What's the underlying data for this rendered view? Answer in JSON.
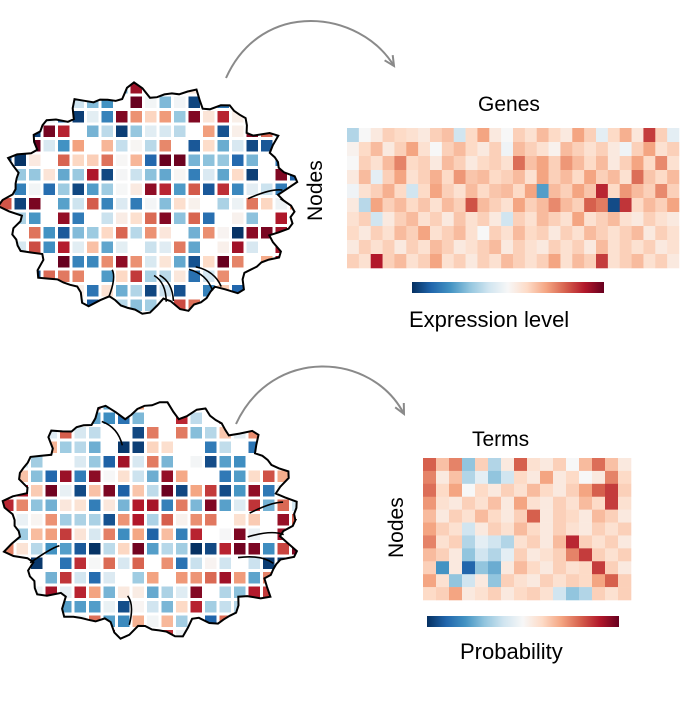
{
  "colors": {
    "scale": [
      "#053061",
      "#2166ac",
      "#4393c3",
      "#92c5de",
      "#d1e5f0",
      "#f7f7f7",
      "#fddbc7",
      "#f4a582",
      "#d6604d",
      "#b2182b",
      "#67001f"
    ],
    "outline": "#000000",
    "arrow": "#8a8a8a"
  },
  "panels": [
    {
      "id": "expression",
      "matrix_title": "Genes",
      "row_label": "Nodes",
      "colorbar_label": "Expression level",
      "matrix": [
        [
          0.35,
          0.5,
          0.55,
          0.62,
          0.6,
          0.58,
          0.55,
          0.62,
          0.65,
          0.4,
          0.6,
          0.7,
          0.55,
          0.5,
          0.62,
          0.58,
          0.66,
          0.6,
          0.55,
          0.7,
          0.62,
          0.45,
          0.6,
          0.68,
          0.56,
          0.85,
          0.62,
          0.45
        ],
        [
          0.52,
          0.6,
          0.66,
          0.55,
          0.62,
          0.7,
          0.58,
          0.5,
          0.62,
          0.66,
          0.6,
          0.55,
          0.62,
          0.48,
          0.66,
          0.62,
          0.58,
          0.52,
          0.66,
          0.62,
          0.58,
          0.62,
          0.55,
          0.48,
          0.62,
          0.7,
          0.58,
          0.62
        ],
        [
          0.5,
          0.62,
          0.58,
          0.66,
          0.75,
          0.6,
          0.62,
          0.55,
          0.66,
          0.62,
          0.55,
          0.6,
          0.62,
          0.58,
          0.78,
          0.65,
          0.7,
          0.62,
          0.72,
          0.66,
          0.6,
          0.66,
          0.55,
          0.62,
          0.7,
          0.6,
          0.74,
          0.58
        ],
        [
          0.55,
          0.66,
          0.45,
          0.62,
          0.7,
          0.58,
          0.62,
          0.68,
          0.6,
          0.72,
          0.64,
          0.66,
          0.6,
          0.62,
          0.66,
          0.58,
          0.7,
          0.62,
          0.66,
          0.6,
          0.7,
          0.62,
          0.66,
          0.58,
          0.78,
          0.64,
          0.6,
          0.66
        ],
        [
          0.48,
          0.58,
          0.62,
          0.68,
          0.6,
          0.4,
          0.6,
          0.7,
          0.62,
          0.58,
          0.66,
          0.6,
          0.64,
          0.66,
          0.6,
          0.7,
          0.22,
          0.66,
          0.62,
          0.7,
          0.64,
          0.88,
          0.6,
          0.72,
          0.66,
          0.62,
          0.74,
          0.62
        ],
        [
          0.55,
          0.36,
          0.7,
          0.62,
          0.66,
          0.6,
          0.64,
          0.58,
          0.66,
          0.62,
          0.82,
          0.66,
          0.62,
          0.58,
          0.7,
          0.62,
          0.66,
          0.74,
          0.66,
          0.62,
          0.8,
          0.76,
          0.05,
          0.86,
          0.6,
          0.66,
          0.62,
          0.7
        ],
        [
          0.58,
          0.62,
          0.4,
          0.55,
          0.62,
          0.66,
          0.58,
          0.62,
          0.55,
          0.64,
          0.58,
          0.62,
          0.55,
          0.4,
          0.62,
          0.58,
          0.66,
          0.62,
          0.58,
          0.7,
          0.58,
          0.62,
          0.66,
          0.58,
          0.55,
          0.62,
          0.58,
          0.55
        ],
        [
          0.6,
          0.55,
          0.62,
          0.58,
          0.66,
          0.62,
          0.7,
          0.58,
          0.62,
          0.66,
          0.58,
          0.5,
          0.62,
          0.58,
          0.66,
          0.6,
          0.62,
          0.55,
          0.62,
          0.58,
          0.66,
          0.62,
          0.58,
          0.62,
          0.66,
          0.55,
          0.62,
          0.58
        ],
        [
          0.55,
          0.62,
          0.58,
          0.62,
          0.55,
          0.62,
          0.58,
          0.66,
          0.62,
          0.55,
          0.58,
          0.62,
          0.66,
          0.55,
          0.62,
          0.58,
          0.55,
          0.62,
          0.58,
          0.62,
          0.55,
          0.66,
          0.58,
          0.62,
          0.58,
          0.62,
          0.55,
          0.58
        ],
        [
          0.62,
          0.58,
          0.9,
          0.62,
          0.66,
          0.58,
          0.62,
          0.7,
          0.58,
          0.62,
          0.55,
          0.62,
          0.58,
          0.66,
          0.62,
          0.58,
          0.62,
          0.7,
          0.58,
          0.66,
          0.62,
          0.85,
          0.58,
          0.62,
          0.66,
          0.58,
          0.62,
          0.55
        ]
      ]
    },
    {
      "id": "probability",
      "matrix_title": "Terms",
      "row_label": "Nodes",
      "colorbar_label": "Probability",
      "matrix": [
        [
          0.8,
          0.65,
          0.75,
          0.3,
          0.62,
          0.35,
          0.55,
          0.8,
          0.58,
          0.55,
          0.62,
          0.5,
          0.66,
          0.78,
          0.65,
          0.55
        ],
        [
          0.75,
          0.55,
          0.65,
          0.35,
          0.45,
          0.3,
          0.4,
          0.6,
          0.55,
          0.7,
          0.55,
          0.6,
          0.5,
          0.55,
          0.75,
          0.6
        ],
        [
          0.78,
          0.6,
          0.7,
          0.5,
          0.6,
          0.55,
          0.62,
          0.58,
          0.66,
          0.6,
          0.55,
          0.62,
          0.7,
          0.8,
          0.85,
          0.62
        ],
        [
          0.72,
          0.58,
          0.55,
          0.62,
          0.58,
          0.65,
          0.55,
          0.7,
          0.58,
          0.55,
          0.62,
          0.58,
          0.66,
          0.6,
          0.85,
          0.58
        ],
        [
          0.66,
          0.55,
          0.62,
          0.58,
          0.66,
          0.6,
          0.55,
          0.62,
          0.8,
          0.55,
          0.62,
          0.6,
          0.55,
          0.66,
          0.62,
          0.55
        ],
        [
          0.7,
          0.62,
          0.58,
          0.4,
          0.55,
          0.62,
          0.58,
          0.66,
          0.6,
          0.55,
          0.62,
          0.58,
          0.55,
          0.62,
          0.58,
          0.62
        ],
        [
          0.75,
          0.58,
          0.62,
          0.35,
          0.45,
          0.4,
          0.35,
          0.58,
          0.62,
          0.55,
          0.66,
          0.88,
          0.62,
          0.58,
          0.62,
          0.55
        ],
        [
          0.66,
          0.62,
          0.55,
          0.3,
          0.4,
          0.35,
          0.45,
          0.62,
          0.55,
          0.58,
          0.62,
          0.75,
          0.85,
          0.62,
          0.58,
          0.62
        ],
        [
          0.62,
          0.2,
          0.55,
          0.1,
          0.3,
          0.25,
          0.55,
          0.66,
          0.6,
          0.55,
          0.62,
          0.58,
          0.6,
          0.85,
          0.62,
          0.55
        ],
        [
          0.7,
          0.58,
          0.3,
          0.4,
          0.55,
          0.3,
          0.62,
          0.58,
          0.55,
          0.62,
          0.58,
          0.62,
          0.6,
          0.7,
          0.8,
          0.62
        ],
        [
          0.6,
          0.62,
          0.7,
          0.55,
          0.58,
          0.62,
          0.55,
          0.6,
          0.62,
          0.58,
          0.4,
          0.3,
          0.35,
          0.62,
          0.58,
          0.62
        ]
      ]
    }
  ]
}
